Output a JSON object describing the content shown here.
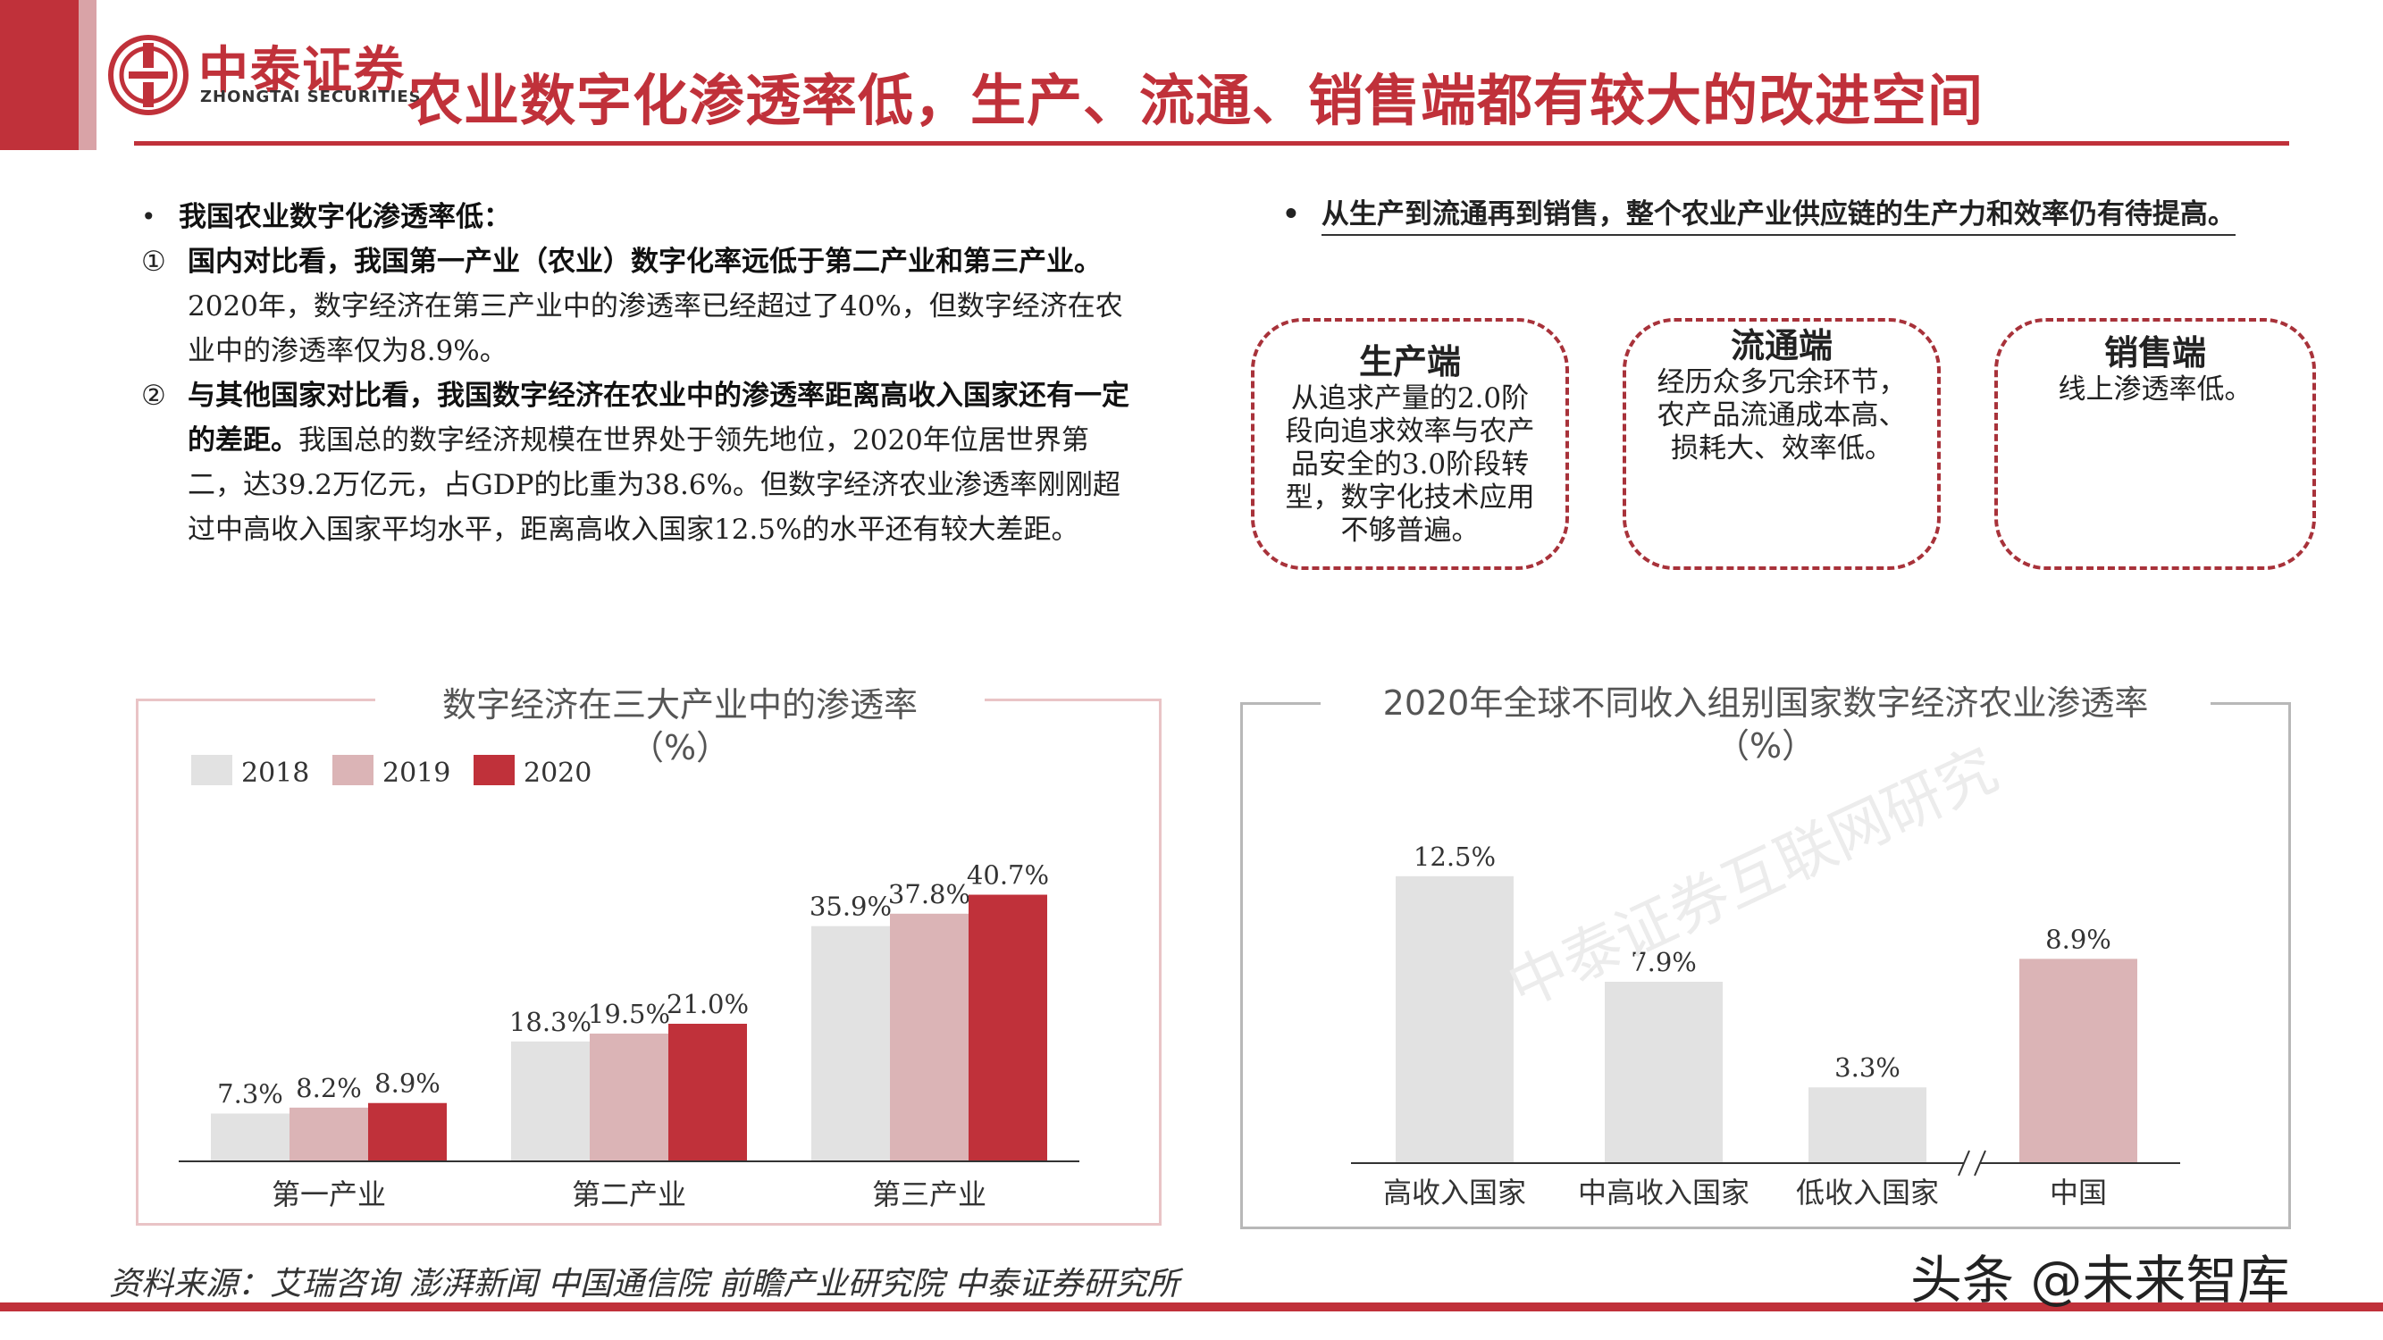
{
  "header": {
    "logo_cn": "中泰证券",
    "logo_en": "ZHONGTAI SECURITIES",
    "title": "农业数字化渗透率低，生产、流通、销售端都有较大的改进空间"
  },
  "left_text": {
    "bullet": "•",
    "heading": "我国农业数字化渗透率低：",
    "point1_marker": "①",
    "point1_bold": "国内对比看，我国第一产业（农业）数字化率远低于第二产业和第三产业。",
    "point1_text": "2020年，数字经济在第三产业中的渗透率已经超过了40%，但数字经济在农业中的渗透率仅为8.9%。",
    "point2_marker": "②",
    "point2_bold": "与其他国家对比看，我国数字经济在农业中的渗透率距离高收入国家还有一定的差距。",
    "point2_text": "我国总的数字经济规模在世界处于领先地位，2020年位居世界第二，达39.2万亿元，占GDP的比重为38.6%。但数字经济农业渗透率刚刚超过中高收入国家平均水平，距离高收入国家12.5%的水平还有较大差距。"
  },
  "right_note": {
    "bullet": "•",
    "text": "从生产到流通再到销售，整个农业产业供应链的生产力和效率仍有待提高。"
  },
  "boxes": [
    {
      "title": "生产端",
      "body": "从追求产量的2.0阶段向追求效率与农产品安全的3.0阶段转型，数字化技术应用不够普遍。"
    },
    {
      "title": "流通端",
      "body": "经历众多冗余环节，农产品流通成本高、损耗大、效率低。"
    },
    {
      "title": "销售端",
      "body": "线上渗透率低。"
    }
  ],
  "chart_data": [
    {
      "type": "bar",
      "title": "数字经济在三大产业中的渗透率",
      "subtitle": "（%）",
      "categories": [
        "第一产业",
        "第二产业",
        "第三产业"
      ],
      "series": [
        {
          "name": "2018",
          "values": [
            7.3,
            18.3,
            35.9
          ],
          "color": "#e2e2e2"
        },
        {
          "name": "2019",
          "values": [
            8.2,
            19.5,
            37.8
          ],
          "color": "#dbb4b6"
        },
        {
          "name": "2020",
          "values": [
            8.9,
            21.0,
            40.7
          ],
          "color": "#c0313a"
        }
      ],
      "value_format": "percent",
      "legend": "top-left",
      "ylim": [
        0,
        45
      ]
    },
    {
      "type": "bar",
      "title": "2020年全球不同收入组别国家数字经济农业渗透率",
      "subtitle": "（%）",
      "categories": [
        "高收入国家",
        "中高收入国家",
        "低收入国家",
        "中国"
      ],
      "values": [
        12.5,
        7.9,
        3.3,
        8.9
      ],
      "colors": [
        "#e2e2e2",
        "#e2e2e2",
        "#e2e2e2",
        "#dbb4b6"
      ],
      "axis_break_before": "中国",
      "value_format": "percent",
      "ylim": [
        0,
        13
      ]
    }
  ],
  "source": "资料来源：艾瑞咨询 澎湃新闻 中国通信院 前瞻产业研究院 中泰证券研究所",
  "watermarks": {
    "brand": "头条 @未来智库",
    "diagonal": "中泰证券互联网研究"
  },
  "colors": {
    "brand_red": "#c0313a",
    "light_pink": "#dbb4b6",
    "light_gray": "#e2e2e2"
  }
}
